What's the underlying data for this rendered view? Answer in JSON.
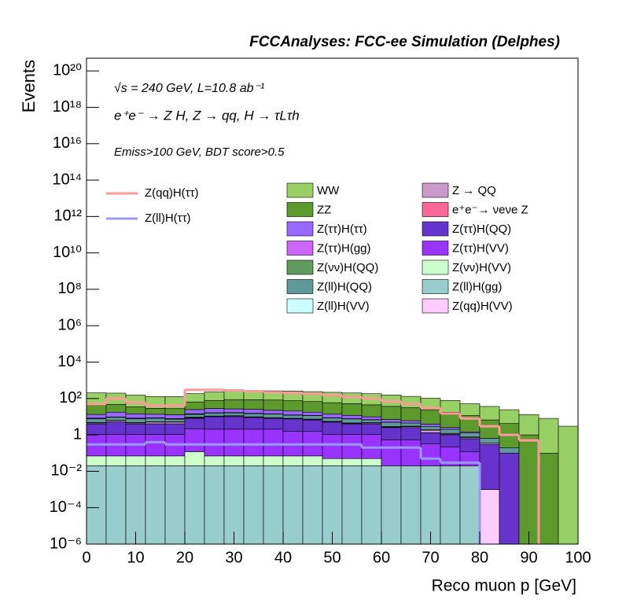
{
  "chart_data": {
    "type": "histogram",
    "stacked": true,
    "log_y": true,
    "title": "FCCAnalyses: FCC-ee Simulation (Delphes)",
    "annotations": [
      "√s = 240 GeV, L=10.8 ab⁻¹",
      "e⁺e⁻ → Z H, Z → qq, H → τLτh",
      "Emiss>100 GeV, BDT score>0.5"
    ],
    "x_label": "Reco muon p [GeV]",
    "y_label": "Events",
    "xlim": [
      0,
      100
    ],
    "xticks": [
      0,
      10,
      20,
      30,
      40,
      50,
      60,
      70,
      80,
      90,
      100
    ],
    "ylim": [
      1e-06,
      5e+20
    ],
    "yticks": [
      {
        "value": 1e-06,
        "label": "10⁻⁶"
      },
      {
        "value": 0.0001,
        "label": "10⁻⁴"
      },
      {
        "value": 0.01,
        "label": "10⁻²"
      },
      1,
      {
        "value": 100,
        "label": "10²"
      },
      {
        "value": 10000,
        "label": "10⁴"
      },
      {
        "value": 1000000,
        "label": "10⁶"
      },
      {
        "value": 100000000,
        "label": "10⁸"
      },
      {
        "value": 10000000000,
        "label": "10¹⁰"
      },
      {
        "value": 1000000000000,
        "label": "10¹²"
      },
      {
        "value": 100000000000000,
        "label": "10¹⁴"
      },
      {
        "value": 10000000000000000,
        "label": "10¹⁶"
      },
      {
        "value": 1000000000000000000,
        "label": "10¹⁸"
      },
      {
        "value": 100000000000000000000,
        "label": "10²⁰"
      }
    ],
    "bins": [
      0,
      4,
      8,
      12,
      16,
      20,
      24,
      28,
      32,
      36,
      40,
      44,
      48,
      52,
      56,
      60,
      64,
      68,
      72,
      76,
      80,
      84,
      88,
      92,
      96,
      100
    ],
    "series": [
      {
        "name": "WW",
        "color": "#99d066",
        "values": [
          150,
          150,
          120,
          100,
          100,
          120,
          150,
          170,
          180,
          180,
          180,
          170,
          160,
          150,
          140,
          120,
          100,
          80,
          60,
          40,
          30,
          20,
          12,
          8,
          3
        ]
      },
      {
        "name": "ZZ",
        "color": "#5c9a2e",
        "values": [
          40,
          30,
          20,
          15,
          15,
          40,
          50,
          60,
          60,
          60,
          55,
          50,
          45,
          40,
          35,
          30,
          25,
          20,
          15,
          10,
          6,
          4,
          1,
          0.1,
          null
        ]
      },
      {
        "name": "Z(ττ)H(ττ)",
        "color": "#9966ff",
        "values": [
          5,
          8,
          6,
          5,
          5,
          10,
          12,
          10,
          10,
          8,
          8,
          6,
          5,
          4,
          3,
          2,
          1.5,
          1,
          0.5,
          0.2,
          null,
          null,
          null,
          null,
          null
        ]
      },
      {
        "name": "Z(ττ)H(gg)",
        "color": "#cc66ff",
        "values": [
          0.1,
          0.1,
          0.1,
          0.1,
          0.1,
          0.2,
          0.1,
          0.1,
          0.1,
          0.1,
          0.1,
          0.05,
          0.05,
          0.05,
          0.05,
          null,
          null,
          null,
          null,
          null,
          null,
          null,
          null,
          null,
          null
        ]
      },
      {
        "name": "Z(νν)H(QQ)",
        "color": "#5f9a5f",
        "values": [
          0.5,
          0.3,
          0.5,
          0.3,
          0.5,
          1,
          0.5,
          0.5,
          0.5,
          0.5,
          0.3,
          0.3,
          0.2,
          0.2,
          0.1,
          0.1,
          null,
          null,
          null,
          null,
          null,
          null,
          null,
          null,
          null
        ]
      },
      {
        "name": "Z(ll)H(QQ)",
        "color": "#5f9999",
        "values": [
          3,
          3,
          3,
          3,
          2,
          4,
          5,
          5,
          5,
          5,
          4,
          4,
          3,
          3,
          2,
          2,
          1.5,
          1,
          0.8,
          0.5,
          0.3,
          0.1,
          null,
          null,
          null
        ]
      },
      {
        "name": "Z(ll)H(VV)",
        "color": "#ccffff",
        "values": [
          0.2,
          0.2,
          0.2,
          0.2,
          0.2,
          0.3,
          0.3,
          0.3,
          0.3,
          0.3,
          0.3,
          0.3,
          0.2,
          0.2,
          0.2,
          0.2,
          0.2,
          0.1,
          0.1,
          0.05,
          null,
          null,
          null,
          null,
          null
        ]
      },
      {
        "name": "Z → QQ",
        "color": "#cc99cc",
        "values": [
          0.5,
          1,
          0.5,
          1,
          1,
          0.5,
          0.5,
          1,
          0.5,
          0.5,
          0.3,
          0.5,
          0.3,
          0.3,
          0.5,
          0.2,
          0.3,
          0.5,
          0.1,
          0.1,
          0.05,
          null,
          null,
          null,
          null
        ]
      },
      {
        "name": "e⁺e⁻→ νeνe Z",
        "color": "#ff6699",
        "values": [
          null,
          null,
          null,
          null,
          null,
          0.5,
          null,
          null,
          null,
          null,
          null,
          null,
          null,
          null,
          null,
          null,
          null,
          null,
          null,
          null,
          null,
          null,
          null,
          null,
          null
        ]
      },
      {
        "name": "Z(ττ)H(QQ)",
        "color": "#6633cc",
        "values": [
          3,
          4,
          3,
          3,
          3,
          6,
          8,
          8,
          7,
          6,
          6,
          5,
          4,
          3,
          3,
          2,
          2,
          1,
          0.8,
          0.5,
          0.3,
          0.1,
          null,
          null,
          null
        ]
      },
      {
        "name": "Z(ττ)H(VV)",
        "color": "#9933ff",
        "values": [
          1,
          1,
          1,
          1,
          1,
          2,
          2,
          2,
          2,
          2,
          1.5,
          1.5,
          1,
          1,
          1,
          0.5,
          0.5,
          0.3,
          0.2,
          0.1,
          null,
          null,
          null,
          null,
          null
        ]
      },
      {
        "name": "Z(νν)H(VV)",
        "color": "#ccffcc",
        "values": [
          0.05,
          0.05,
          0.05,
          0.05,
          0.05,
          0.1,
          0.05,
          0.05,
          0.05,
          0.05,
          0.05,
          0.05,
          0.03,
          0.03,
          0.03,
          null,
          null,
          null,
          null,
          null,
          null,
          null,
          null,
          null,
          null
        ]
      },
      {
        "name": "Z(ll)H(gg)",
        "color": "#99cccc",
        "values": [
          0.02,
          0.02,
          0.02,
          0.02,
          0.02,
          0.02,
          0.02,
          0.02,
          0.02,
          0.02,
          0.02,
          0.02,
          0.02,
          0.02,
          0.02,
          0.02,
          0.02,
          0.02,
          0.02,
          0.02,
          null,
          null,
          null,
          null,
          null
        ]
      },
      {
        "name": "Z(qq)H(VV)",
        "color": "#ffccff",
        "values": [
          null,
          null,
          null,
          null,
          null,
          null,
          null,
          null,
          null,
          null,
          null,
          null,
          null,
          null,
          null,
          null,
          null,
          null,
          null,
          null,
          0.001,
          null,
          null,
          null,
          null
        ]
      }
    ],
    "lines": [
      {
        "name": "Z(qq)H(ττ)",
        "color": "#ff9999",
        "values": [
          50,
          100,
          60,
          40,
          40,
          300,
          300,
          280,
          250,
          220,
          200,
          180,
          150,
          120,
          100,
          70,
          50,
          30,
          15,
          8,
          3,
          1,
          0.5,
          null,
          null
        ]
      },
      {
        "name": "Z(ll)H(ττ)",
        "color": "#9999ff",
        "values": [
          0.3,
          0.3,
          0.3,
          0.4,
          0.3,
          0.3,
          0.3,
          0.3,
          0.3,
          0.3,
          0.3,
          0.3,
          0.3,
          0.3,
          0.2,
          0.2,
          0.2,
          0.05,
          0.03,
          0.03,
          null,
          null,
          null,
          null,
          null
        ]
      }
    ]
  }
}
